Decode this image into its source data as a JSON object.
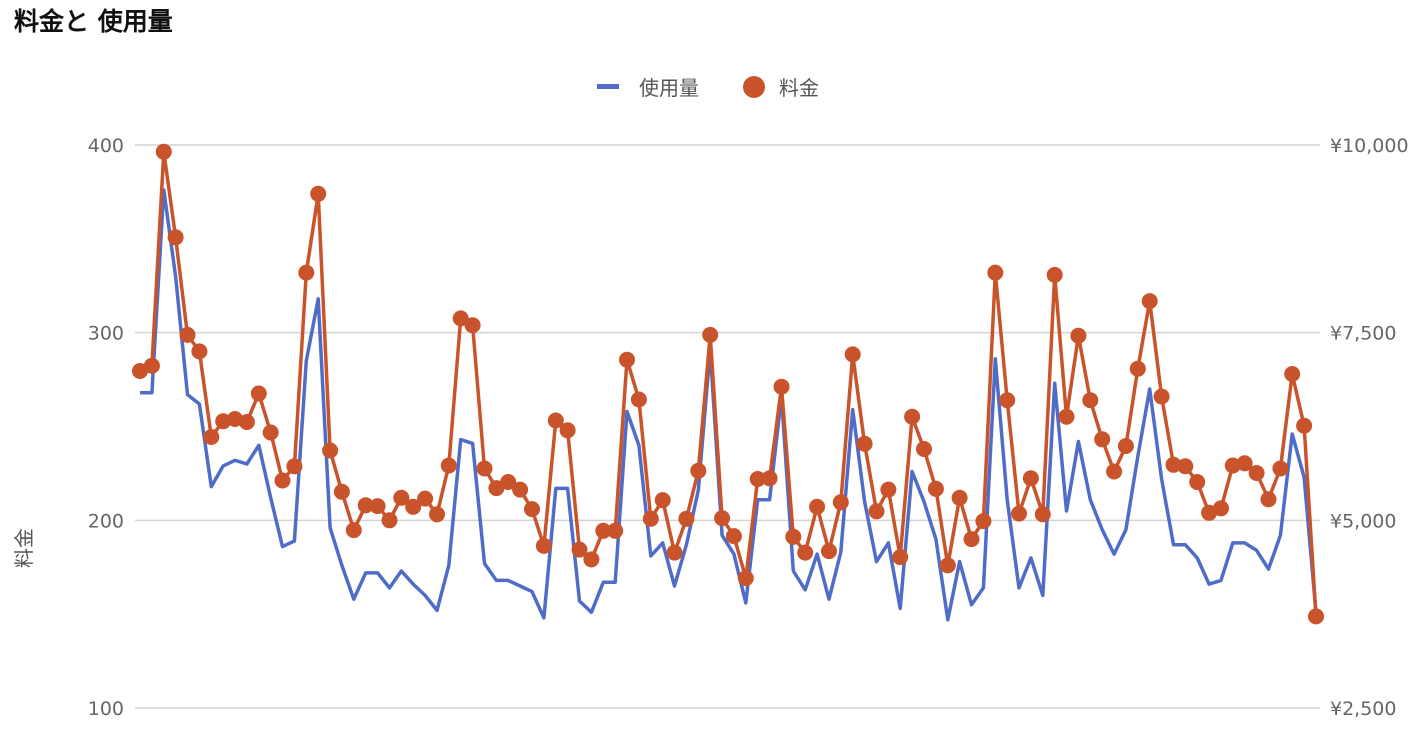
{
  "header": {
    "title": "料金と 使用量"
  },
  "legend": {
    "usage_label": "使用量",
    "fee_label": "料金"
  },
  "colors": {
    "usage": "#4f6dc8",
    "fee": "#c9532a",
    "grid": "#d4d4d4"
  },
  "chart_data": {
    "type": "line",
    "title": "料金と 使用量",
    "ylabel": "料金",
    "y2label": "",
    "ylim": [
      100,
      400
    ],
    "y2lim": [
      2500,
      10000
    ],
    "yticks": [
      "100",
      "200",
      "300",
      "400"
    ],
    "y2ticks": [
      "¥2,500",
      "¥5,000",
      "¥7,500",
      "¥10,000"
    ],
    "grid": true,
    "legend_position": "top",
    "series": [
      {
        "name": "使用量",
        "axis": "left",
        "marker": "line",
        "values": [
          268,
          268,
          376,
          330,
          267,
          262,
          218,
          229,
          232,
          230,
          240,
          212,
          186,
          189,
          285,
          318,
          196,
          176,
          158,
          172,
          172,
          164,
          173,
          166,
          160,
          152,
          176,
          243,
          241,
          177,
          168,
          168,
          165,
          162,
          148,
          217,
          217,
          157,
          151,
          167,
          167,
          258,
          240,
          181,
          188,
          165,
          187,
          216,
          291,
          192,
          182,
          156,
          211,
          211,
          266,
          173,
          163,
          182,
          158,
          183,
          259,
          210,
          178,
          188,
          153,
          226,
          210,
          190,
          147,
          178,
          155,
          164,
          286,
          211,
          164,
          180,
          160,
          273,
          205,
          242,
          211,
          195,
          182,
          195,
          234,
          270,
          222,
          187,
          187,
          180,
          166,
          168,
          188,
          188,
          184,
          174,
          192,
          246,
          223,
          151
        ]
      },
      {
        "name": "料金",
        "axis": "right",
        "marker": "circle",
        "values": [
          6990,
          7060,
          9910,
          8770,
          7470,
          7250,
          6110,
          6320,
          6350,
          6310,
          6690,
          6170,
          5530,
          5720,
          8300,
          9350,
          5930,
          5380,
          4870,
          5200,
          5190,
          5000,
          5300,
          5180,
          5290,
          5080,
          5730,
          7690,
          7600,
          5690,
          5430,
          5510,
          5410,
          5150,
          4660,
          6330,
          6200,
          4610,
          4480,
          4860,
          4860,
          7140,
          6610,
          5020,
          5270,
          4570,
          5020,
          5660,
          7470,
          5030,
          4790,
          4230,
          5550,
          5560,
          6780,
          4780,
          4570,
          5180,
          4590,
          5240,
          7210,
          6020,
          5120,
          5410,
          4510,
          6380,
          5950,
          5420,
          4400,
          5300,
          4750,
          4990,
          8300,
          6600,
          5090,
          5560,
          5080,
          8270,
          6380,
          7460,
          6600,
          6080,
          5650,
          5990,
          7020,
          7920,
          6650,
          5740,
          5720,
          5510,
          5100,
          5160,
          5730,
          5760,
          5630,
          5280,
          5690,
          6950,
          6260,
          3720
        ]
      }
    ]
  }
}
